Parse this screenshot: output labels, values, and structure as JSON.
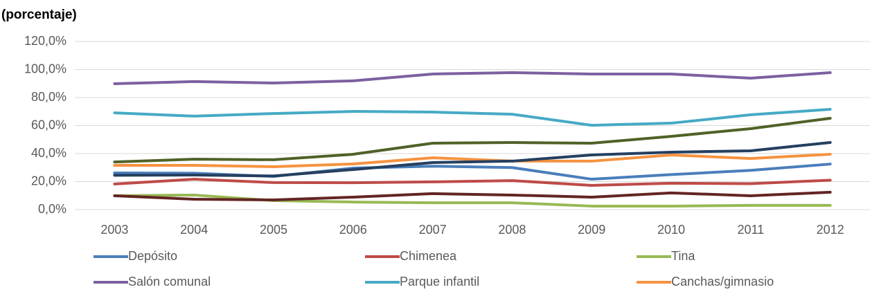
{
  "chart_data": {
    "type": "line",
    "title": "(porcentaje)",
    "categories": [
      "2003",
      "2004",
      "2005",
      "2006",
      "2007",
      "2008",
      "2009",
      "2010",
      "2011",
      "2012"
    ],
    "ylim": [
      0,
      120
    ],
    "yticks": [
      {
        "value": 0,
        "label": "0,0%"
      },
      {
        "value": 20,
        "label": "20,0%"
      },
      {
        "value": 40,
        "label": "40,0%"
      },
      {
        "value": 60,
        "label": "60,0%"
      },
      {
        "value": 80,
        "label": "80,0%"
      },
      {
        "value": 100,
        "label": "100,0%"
      },
      {
        "value": 120,
        "label": "120,0%"
      }
    ],
    "grid": true,
    "series": [
      {
        "name": "Depósito",
        "color": "#4a7ebb",
        "values": [
          26.2,
          26,
          23.7,
          29.6,
          31,
          30,
          21.7,
          25,
          28,
          32.5
        ]
      },
      {
        "name": "Chimenea",
        "color": "#be4b48",
        "values": [
          18.3,
          21.7,
          19.3,
          19.2,
          19.8,
          20.7,
          17.3,
          18.8,
          18.5,
          21
        ]
      },
      {
        "name": "Tina",
        "color": "#98b954",
        "values": [
          9.9,
          10.4,
          6.4,
          5.4,
          4.9,
          4.9,
          2.5,
          2.5,
          3,
          3
        ]
      },
      {
        "name": "Salón comunal",
        "color": "#7d60a0",
        "values": [
          89.9,
          91.4,
          90.4,
          91.9,
          96.8,
          97.8,
          96.8,
          96.8,
          93.8,
          97.8
        ]
      },
      {
        "name": "Parque infantil",
        "color": "#46aac5",
        "values": [
          69.1,
          66.7,
          68.6,
          70.1,
          69.6,
          68.1,
          60.2,
          61.7,
          67.7,
          71.6
        ]
      },
      {
        "name": "Canchas/gimnasio",
        "color": "#f69240",
        "values": [
          31.6,
          31.6,
          30.6,
          32.6,
          37,
          34.6,
          34.6,
          39,
          36.5,
          39.5
        ]
      },
      {
        "color": "#4f6228",
        "values": [
          34,
          36,
          35.6,
          39.5,
          47.4,
          47.9,
          47.4,
          52.3,
          57.8,
          65.2
        ]
      },
      {
        "color": "#243f60",
        "values": [
          24.5,
          24.7,
          24,
          28.6,
          33.6,
          34.6,
          39,
          41,
          42,
          47.9
        ]
      },
      {
        "color": "#632523",
        "values": [
          9.9,
          7.4,
          6.9,
          8.9,
          11.4,
          10.4,
          8.9,
          11.9,
          9.9,
          12.4
        ]
      }
    ]
  }
}
